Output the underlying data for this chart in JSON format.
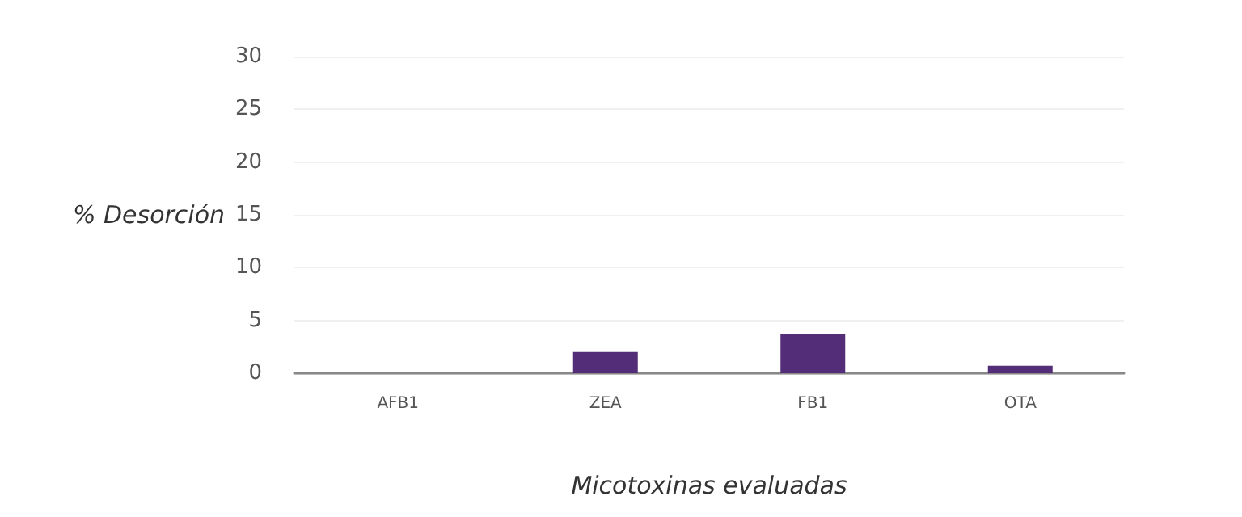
{
  "chart_data": {
    "type": "bar",
    "xlabel": "Micotoxinas evaluadas",
    "ylabel": "% Desorción",
    "categories": [
      "AFB1",
      "ZEA",
      "FB1",
      "OTA"
    ],
    "values": [
      0,
      2.0,
      3.7,
      0.7
    ],
    "color": "#542d78",
    "ylim": [
      0,
      30
    ],
    "yticks": [
      0,
      5,
      10,
      15,
      20,
      25,
      30
    ],
    "grid": "y"
  }
}
